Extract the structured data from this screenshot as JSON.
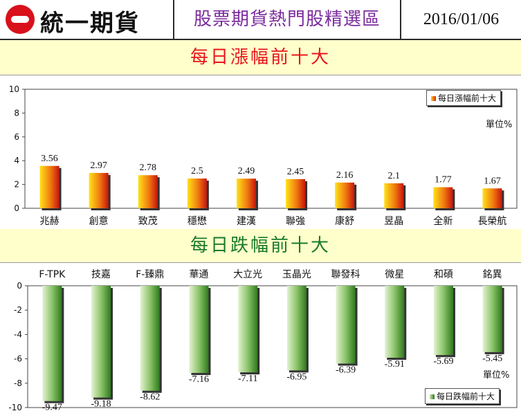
{
  "header": {
    "logo_text": "統一期貨",
    "title": "股票期貨熱門股精選區",
    "date": "2016/01/06"
  },
  "colors": {
    "header_title": "#7b2b9c",
    "band_background": "#ffffcc",
    "gain_title": "#e8141b",
    "loss_title": "#1a7a2a",
    "gain_bar_light": "#ffd21a",
    "gain_bar_dark": "#d6200f",
    "loss_bar_light": "#cfe8b8",
    "loss_bar_dark": "#2f7a1e"
  },
  "chart_data": [
    {
      "type": "bar",
      "title": "每日漲幅前十大",
      "legend": "每日漲幅前十大",
      "unit": "單位%",
      "legend_position": "top-right",
      "categories": [
        "兆赫",
        "創意",
        "致茂",
        "穩懋",
        "建漢",
        "聯強",
        "康舒",
        "昱晶",
        "全新",
        "長榮航"
      ],
      "values": [
        3.56,
        2.97,
        2.78,
        2.5,
        2.49,
        2.45,
        2.16,
        2.1,
        1.77,
        1.67
      ],
      "ylim": [
        0,
        10
      ],
      "yticks": [
        0,
        2,
        4,
        6,
        8,
        10
      ],
      "grid": false
    },
    {
      "type": "bar",
      "title": "每日跌幅前十大",
      "legend": "每日跌幅前十大",
      "unit": "單位%",
      "legend_position": "bottom-right",
      "categories": [
        "F-TPK",
        "技嘉",
        "F-臻鼎",
        "華通",
        "大立光",
        "玉晶光",
        "聯發科",
        "微星",
        "和碩",
        "銘異"
      ],
      "values": [
        -9.47,
        -9.18,
        -8.62,
        -7.16,
        -7.11,
        -6.95,
        -6.39,
        -5.91,
        -5.69,
        -5.45
      ],
      "ylim": [
        -10,
        0
      ],
      "yticks": [
        0,
        -2,
        -4,
        -6,
        -8,
        -10
      ],
      "grid": false
    }
  ]
}
